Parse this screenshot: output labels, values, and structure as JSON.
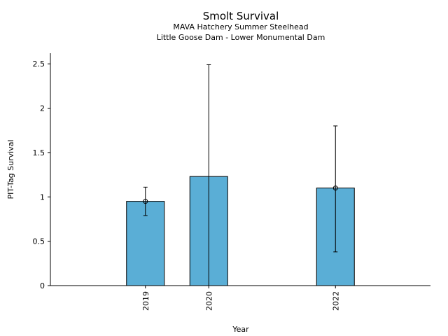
{
  "chart_data": {
    "type": "bar",
    "title": "Smolt Survival",
    "subtitles": [
      "MAVA Hatchery Summer Steelhead",
      "Little Goose Dam - Lower Monumental Dam"
    ],
    "xlabel": "Year",
    "ylabel": "PIT-Tag Survival",
    "x_range": [
      2017.5,
      2023.5
    ],
    "ylim": [
      0,
      2.62
    ],
    "y_ticks": [
      0,
      0.5,
      1,
      1.5,
      2,
      2.5
    ],
    "y_tick_labels": [
      "0",
      "0.5",
      "1",
      "1.5",
      "2",
      "2.5"
    ],
    "bar_color": "#5aaed6",
    "series": [
      {
        "values": [
          {
            "year": 2019,
            "label": "2019",
            "survival": 0.95,
            "error_low": 0.79,
            "error_high": 1.11,
            "marker": true
          },
          {
            "year": 2020,
            "label": "2020",
            "survival": 1.23,
            "error_low": 0.0,
            "error_high": 2.49,
            "marker": false
          },
          {
            "year": 2022,
            "label": "2022",
            "survival": 1.1,
            "error_low": 0.38,
            "error_high": 1.8,
            "marker": true
          }
        ]
      }
    ],
    "grid": false
  }
}
